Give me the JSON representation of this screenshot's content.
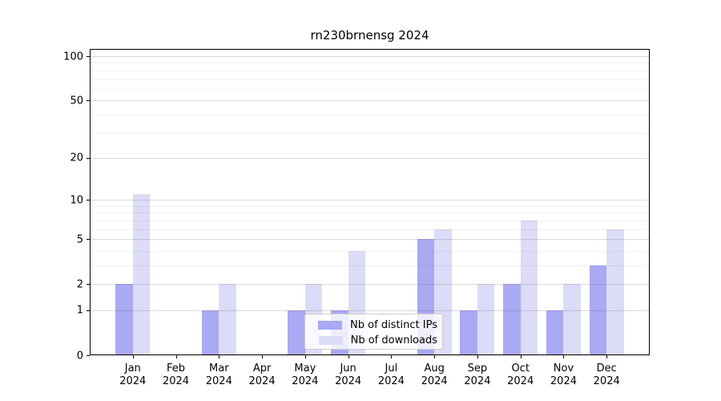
{
  "chart_data": {
    "type": "bar",
    "title": "rn230brnensg 2024",
    "categories": [
      {
        "month": "Jan",
        "year": "2024"
      },
      {
        "month": "Feb",
        "year": "2024"
      },
      {
        "month": "Mar",
        "year": "2024"
      },
      {
        "month": "Apr",
        "year": "2024"
      },
      {
        "month": "May",
        "year": "2024"
      },
      {
        "month": "Jun",
        "year": "2024"
      },
      {
        "month": "Jul",
        "year": "2024"
      },
      {
        "month": "Aug",
        "year": "2024"
      },
      {
        "month": "Sep",
        "year": "2024"
      },
      {
        "month": "Oct",
        "year": "2024"
      },
      {
        "month": "Nov",
        "year": "2024"
      },
      {
        "month": "Dec",
        "year": "2024"
      }
    ],
    "series": [
      {
        "name": "Nb of distinct IPs",
        "color": "#a9a9f4",
        "values": [
          2,
          0,
          1,
          0,
          1,
          1,
          0,
          5,
          1,
          2,
          1,
          3
        ]
      },
      {
        "name": "Nb of downloads",
        "color": "#dcdcf8",
        "values": [
          11,
          0,
          2,
          0,
          2,
          4,
          0,
          6,
          2,
          7,
          2,
          6
        ]
      }
    ],
    "xlabel": "",
    "ylabel": "",
    "yscale": "log1p",
    "ylim": [
      0,
      112
    ],
    "y_ticks": [
      0,
      1,
      2,
      5,
      10,
      20,
      50,
      100
    ],
    "y_minor_gridlines": [
      3,
      4,
      6,
      7,
      8,
      9,
      30,
      40,
      60,
      70,
      80,
      90
    ],
    "grid": true,
    "legend_position": "lower-center-inside"
  },
  "legend": {
    "items": [
      {
        "label": "Nb of distinct IPs",
        "color": "#a9a9f4"
      },
      {
        "label": "Nb of downloads",
        "color": "#dcdcf8"
      }
    ]
  },
  "colors": {
    "bar_distinct_ips": "#a9a9f4",
    "bar_downloads": "#dcdcf8",
    "axis": "#000000",
    "grid_major": "#d6d6d6",
    "grid_minor": "#efefef",
    "background": "#ffffff",
    "legend_border": "#cccccc"
  }
}
